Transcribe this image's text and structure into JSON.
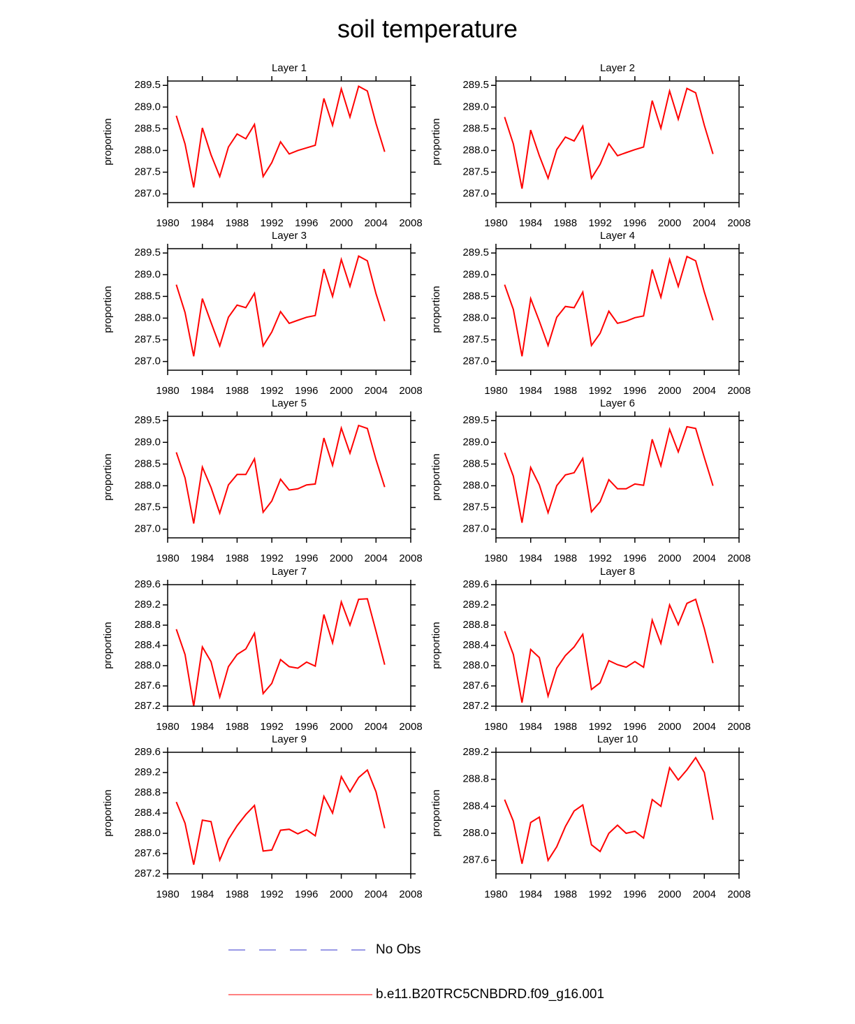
{
  "title": "soil temperature",
  "legend": [
    {
      "name": "No Obs",
      "color": "#3333cc",
      "dashed": true
    },
    {
      "name": "b.e11.B20TRC5CNBDRD.f09_g16.001",
      "color": "#ff0000",
      "dashed": false
    }
  ],
  "chart_data": [
    {
      "type": "line",
      "title": "Layer 1",
      "ylabel": "proportion",
      "x": [
        1981,
        1982,
        1983,
        1984,
        1985,
        1986,
        1987,
        1988,
        1989,
        1990,
        1991,
        1992,
        1993,
        1994,
        1995,
        1996,
        1997,
        1998,
        1999,
        2000,
        2001,
        2002,
        2003,
        2004,
        2005
      ],
      "series": [
        {
          "color": "#ff0000",
          "values": [
            288.8,
            288.15,
            287.15,
            288.52,
            287.9,
            287.4,
            288.08,
            288.38,
            288.27,
            288.6,
            287.4,
            287.72,
            288.2,
            287.92,
            288.0,
            288.06,
            288.12,
            289.2,
            288.58,
            289.42,
            288.77,
            289.48,
            289.37,
            288.62,
            287.97
          ]
        }
      ],
      "xlim": [
        1980,
        2008
      ],
      "xticks": [
        1980,
        1984,
        1988,
        1992,
        1996,
        2000,
        2004,
        2008
      ],
      "ylim": [
        286.8,
        289.6
      ],
      "yticks": [
        {
          "value": 287,
          "label": "287.0"
        },
        287.5,
        {
          "value": 288,
          "label": "288.0"
        },
        288.5,
        {
          "value": 289,
          "label": "289.0"
        },
        289.5
      ]
    },
    {
      "type": "line",
      "title": "Layer 2",
      "ylabel": "proportion",
      "x": [
        1981,
        1982,
        1983,
        1984,
        1985,
        1986,
        1987,
        1988,
        1989,
        1990,
        1991,
        1992,
        1993,
        1994,
        1995,
        1996,
        1997,
        1998,
        1999,
        2000,
        2001,
        2002,
        2003,
        2004,
        2005
      ],
      "series": [
        {
          "color": "#ff0000",
          "values": [
            288.77,
            288.15,
            287.12,
            288.47,
            287.88,
            287.36,
            288.02,
            288.31,
            288.22,
            288.56,
            287.36,
            287.68,
            288.16,
            287.88,
            287.95,
            288.02,
            288.08,
            289.15,
            288.51,
            289.37,
            288.72,
            289.43,
            289.33,
            288.58,
            287.92
          ]
        }
      ],
      "xlim": [
        1980,
        2008
      ],
      "xticks": [
        1980,
        1984,
        1988,
        1992,
        1996,
        2000,
        2004,
        2008
      ],
      "ylim": [
        286.8,
        289.6
      ],
      "yticks": [
        {
          "value": 287,
          "label": "287.0"
        },
        287.5,
        {
          "value": 288,
          "label": "288.0"
        },
        288.5,
        {
          "value": 289,
          "label": "289.0"
        },
        289.5
      ]
    },
    {
      "type": "line",
      "title": "Layer 3",
      "ylabel": "proportion",
      "x": [
        1981,
        1982,
        1983,
        1984,
        1985,
        1986,
        1987,
        1988,
        1989,
        1990,
        1991,
        1992,
        1993,
        1994,
        1995,
        1996,
        1997,
        1998,
        1999,
        2000,
        2001,
        2002,
        2003,
        2004,
        2005
      ],
      "series": [
        {
          "color": "#ff0000",
          "values": [
            288.77,
            288.13,
            287.12,
            288.45,
            287.9,
            287.36,
            288.02,
            288.3,
            288.24,
            288.57,
            287.36,
            287.68,
            288.15,
            287.88,
            287.95,
            288.02,
            288.06,
            289.13,
            288.5,
            289.35,
            288.73,
            289.43,
            289.32,
            288.56,
            287.93
          ]
        }
      ],
      "xlim": [
        1980,
        2008
      ],
      "xticks": [
        1980,
        1984,
        1988,
        1992,
        1996,
        2000,
        2004,
        2008
      ],
      "ylim": [
        286.8,
        289.6
      ],
      "yticks": [
        {
          "value": 287,
          "label": "287.0"
        },
        287.5,
        {
          "value": 288,
          "label": "288.0"
        },
        288.5,
        {
          "value": 289,
          "label": "289.0"
        },
        289.5
      ]
    },
    {
      "type": "line",
      "title": "Layer 4",
      "ylabel": "proportion",
      "x": [
        1981,
        1982,
        1983,
        1984,
        1985,
        1986,
        1987,
        1988,
        1989,
        1990,
        1991,
        1992,
        1993,
        1994,
        1995,
        1996,
        1997,
        1998,
        1999,
        2000,
        2001,
        2002,
        2003,
        2004,
        2005
      ],
      "series": [
        {
          "color": "#ff0000",
          "values": [
            288.77,
            288.2,
            287.12,
            288.45,
            287.93,
            287.37,
            288.02,
            288.27,
            288.24,
            288.6,
            287.37,
            287.65,
            288.16,
            287.88,
            287.93,
            288.01,
            288.05,
            289.12,
            288.48,
            289.35,
            288.73,
            289.42,
            289.32,
            288.6,
            287.95
          ]
        }
      ],
      "xlim": [
        1980,
        2008
      ],
      "xticks": [
        1980,
        1984,
        1988,
        1992,
        1996,
        2000,
        2004,
        2008
      ],
      "ylim": [
        286.8,
        289.6
      ],
      "yticks": [
        {
          "value": 287,
          "label": "287.0"
        },
        287.5,
        {
          "value": 288,
          "label": "288.0"
        },
        288.5,
        {
          "value": 289,
          "label": "289.0"
        },
        289.5
      ]
    },
    {
      "type": "line",
      "title": "Layer 5",
      "ylabel": "proportion",
      "x": [
        1981,
        1982,
        1983,
        1984,
        1985,
        1986,
        1987,
        1988,
        1989,
        1990,
        1991,
        1992,
        1993,
        1994,
        1995,
        1996,
        1997,
        1998,
        1999,
        2000,
        2001,
        2002,
        2003,
        2004,
        2005
      ],
      "series": [
        {
          "color": "#ff0000",
          "values": [
            288.77,
            288.18,
            287.13,
            288.43,
            287.96,
            287.37,
            288.02,
            288.26,
            288.26,
            288.62,
            287.39,
            287.65,
            288.15,
            287.9,
            287.93,
            288.02,
            288.04,
            289.1,
            288.47,
            289.33,
            288.75,
            289.39,
            289.32,
            288.6,
            287.97
          ]
        }
      ],
      "xlim": [
        1980,
        2008
      ],
      "xticks": [
        1980,
        1984,
        1988,
        1992,
        1996,
        2000,
        2004,
        2008
      ],
      "ylim": [
        286.8,
        289.6
      ],
      "yticks": [
        {
          "value": 287,
          "label": "287.0"
        },
        287.5,
        {
          "value": 288,
          "label": "288.0"
        },
        288.5,
        {
          "value": 289,
          "label": "289.0"
        },
        289.5
      ]
    },
    {
      "type": "line",
      "title": "Layer 6",
      "ylabel": "proportion",
      "x": [
        1981,
        1982,
        1983,
        1984,
        1985,
        1986,
        1987,
        1988,
        1989,
        1990,
        1991,
        1992,
        1993,
        1994,
        1995,
        1996,
        1997,
        1998,
        1999,
        2000,
        2001,
        2002,
        2003,
        2004,
        2005
      ],
      "series": [
        {
          "color": "#ff0000",
          "values": [
            288.76,
            288.22,
            287.15,
            288.42,
            288.02,
            287.38,
            288.0,
            288.25,
            288.3,
            288.63,
            287.4,
            287.63,
            288.14,
            287.93,
            287.93,
            288.04,
            288.01,
            289.07,
            288.46,
            289.3,
            288.78,
            289.36,
            289.32,
            288.65,
            288.0
          ]
        }
      ],
      "xlim": [
        1980,
        2008
      ],
      "xticks": [
        1980,
        1984,
        1988,
        1992,
        1996,
        2000,
        2004,
        2008
      ],
      "ylim": [
        286.8,
        289.6
      ],
      "yticks": [
        {
          "value": 287,
          "label": "287.0"
        },
        287.5,
        {
          "value": 288,
          "label": "288.0"
        },
        288.5,
        {
          "value": 289,
          "label": "289.0"
        },
        289.5
      ]
    },
    {
      "type": "line",
      "title": "Layer 7",
      "ylabel": "proportion",
      "x": [
        1981,
        1982,
        1983,
        1984,
        1985,
        1986,
        1987,
        1988,
        1989,
        1990,
        1991,
        1992,
        1993,
        1994,
        1995,
        1996,
        1997,
        1998,
        1999,
        2000,
        2001,
        2002,
        2003,
        2004,
        2005
      ],
      "series": [
        {
          "color": "#ff0000",
          "values": [
            288.72,
            288.22,
            287.2,
            288.37,
            288.08,
            287.38,
            287.98,
            288.22,
            288.33,
            288.64,
            287.45,
            287.65,
            288.12,
            287.98,
            287.95,
            288.07,
            287.99,
            289.01,
            288.45,
            289.26,
            288.8,
            289.31,
            289.32,
            288.68,
            288.02
          ]
        }
      ],
      "xlim": [
        1980,
        2008
      ],
      "xticks": [
        1980,
        1984,
        1988,
        1992,
        1996,
        2000,
        2004,
        2008
      ],
      "ylim": [
        287.2,
        289.6
      ],
      "yticks": [
        287.2,
        287.6,
        {
          "value": 288,
          "label": "288.0"
        },
        288.4,
        288.8,
        289.2,
        289.6
      ]
    },
    {
      "type": "line",
      "title": "Layer 8",
      "ylabel": "proportion",
      "x": [
        1981,
        1982,
        1983,
        1984,
        1985,
        1986,
        1987,
        1988,
        1989,
        1990,
        1991,
        1992,
        1993,
        1994,
        1995,
        1996,
        1997,
        1998,
        1999,
        2000,
        2001,
        2002,
        2003,
        2004,
        2005
      ],
      "series": [
        {
          "color": "#ff0000",
          "values": [
            288.68,
            288.22,
            287.27,
            288.32,
            288.16,
            287.4,
            287.95,
            288.2,
            288.37,
            288.62,
            287.53,
            287.66,
            288.1,
            288.02,
            287.97,
            288.08,
            287.97,
            288.9,
            288.44,
            289.2,
            288.81,
            289.23,
            289.31,
            288.73,
            288.05
          ]
        }
      ],
      "xlim": [
        1980,
        2008
      ],
      "xticks": [
        1980,
        1984,
        1988,
        1992,
        1996,
        2000,
        2004,
        2008
      ],
      "ylim": [
        287.2,
        289.6
      ],
      "yticks": [
        287.2,
        287.6,
        {
          "value": 288,
          "label": "288.0"
        },
        288.4,
        288.8,
        289.2,
        289.6
      ]
    },
    {
      "type": "line",
      "title": "Layer 9",
      "ylabel": "proportion",
      "x": [
        1981,
        1982,
        1983,
        1984,
        1985,
        1986,
        1987,
        1988,
        1989,
        1990,
        1991,
        1992,
        1993,
        1994,
        1995,
        1996,
        1997,
        1998,
        1999,
        2000,
        2001,
        2002,
        2003,
        2004,
        2005
      ],
      "series": [
        {
          "color": "#ff0000",
          "values": [
            288.62,
            288.2,
            287.38,
            288.26,
            288.23,
            287.47,
            287.88,
            288.15,
            288.37,
            288.55,
            287.65,
            287.67,
            288.06,
            288.08,
            287.99,
            288.07,
            287.95,
            288.73,
            288.4,
            289.12,
            288.82,
            289.1,
            289.25,
            288.82,
            288.1
          ]
        }
      ],
      "xlim": [
        1980,
        2008
      ],
      "xticks": [
        1980,
        1984,
        1988,
        1992,
        1996,
        2000,
        2004,
        2008
      ],
      "ylim": [
        287.2,
        289.6
      ],
      "yticks": [
        287.2,
        287.6,
        {
          "value": 288,
          "label": "288.0"
        },
        288.4,
        288.8,
        289.2,
        289.6
      ]
    },
    {
      "type": "line",
      "title": "Layer 10",
      "ylabel": "proportion",
      "x": [
        1981,
        1982,
        1983,
        1984,
        1985,
        1986,
        1987,
        1988,
        1989,
        1990,
        1991,
        1992,
        1993,
        1994,
        1995,
        1996,
        1997,
        1998,
        1999,
        2000,
        2001,
        2002,
        2003,
        2004,
        2005
      ],
      "series": [
        {
          "color": "#ff0000",
          "values": [
            288.5,
            288.18,
            287.55,
            288.16,
            288.24,
            287.6,
            287.8,
            288.1,
            288.33,
            288.42,
            287.83,
            287.73,
            288.0,
            288.12,
            288.0,
            288.03,
            287.93,
            288.5,
            288.4,
            288.97,
            288.79,
            288.94,
            289.12,
            288.9,
            288.2
          ]
        }
      ],
      "xlim": [
        1980,
        2008
      ],
      "xticks": [
        1980,
        1984,
        1988,
        1992,
        1996,
        2000,
        2004,
        2008
      ],
      "ylim": [
        287.4,
        289.2
      ],
      "yticks": [
        287.6,
        {
          "value": 288,
          "label": "288.0"
        },
        288.4,
        288.8,
        289.2
      ]
    }
  ]
}
